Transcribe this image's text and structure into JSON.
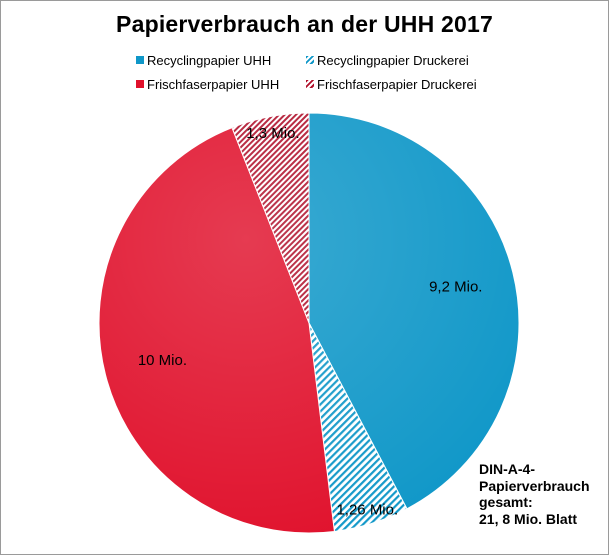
{
  "chart_data": {
    "type": "pie",
    "title": "Papierverbrauch an der UHH 2017",
    "unit": "Mio. Blatt",
    "slices": [
      {
        "name": "Recyclingpapier UHH",
        "value": 9.2,
        "label": "9,2 Mio.",
        "color": "#0f97c8",
        "pattern": "solid"
      },
      {
        "name": "Recyclingpapier Druckerei",
        "value": 1.26,
        "label": "1,26 Mio.",
        "color": "#0f97c8",
        "pattern": "hatched"
      },
      {
        "name": "Frischfaserpapier UHH",
        "value": 10,
        "label": "10 Mio.",
        "color": "#e0102b",
        "pattern": "solid"
      },
      {
        "name": "Frischfaserpapier Druckerei",
        "value": 1.3,
        "label": "1,3 Mio.",
        "color": "#b0102b",
        "pattern": "hatched"
      }
    ],
    "legend_position": "top",
    "start_angle": "12 o'clock",
    "direction": "clockwise"
  },
  "annotation": {
    "lines": [
      "DIN-A-4-",
      "Papierverbrauch",
      "gesamt:",
      "21, 8 Mio. Blatt"
    ]
  }
}
